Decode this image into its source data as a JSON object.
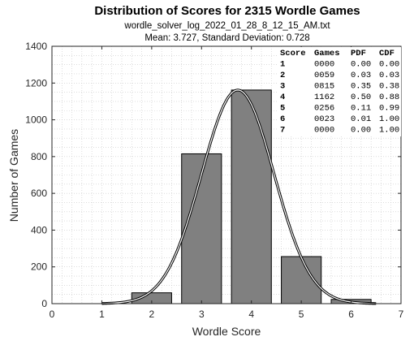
{
  "chart_data": {
    "type": "bar",
    "title": "Distribution of Scores for 2315 Wordle Games",
    "subtitle_file": "wordle_solver_log_2022_01_28_8_12_15_AM.txt",
    "subtitle_stats": "Mean: 3.727, Standard Deviation: 0.728",
    "xlabel": "Wordle Score",
    "ylabel": "Number of Games",
    "xlim": [
      0,
      7
    ],
    "ylim": [
      0,
      1400
    ],
    "xticks": [
      "0",
      "1",
      "2",
      "3",
      "4",
      "5",
      "6",
      "7"
    ],
    "yticks": [
      "0",
      "200",
      "400",
      "600",
      "800",
      "1000",
      "1200",
      "1400"
    ],
    "grid": "minor dotted",
    "bar_color": "#808080",
    "bars": [
      {
        "x": 1,
        "value": 0
      },
      {
        "x": 2,
        "value": 59
      },
      {
        "x": 3,
        "value": 815
      },
      {
        "x": 4,
        "value": 1162
      },
      {
        "x": 5,
        "value": 256
      },
      {
        "x": 6,
        "value": 23
      },
      {
        "x": 7,
        "value": 0
      }
    ],
    "curve": {
      "type": "normal",
      "mean": 3.727,
      "std": 0.728
    },
    "table": {
      "headers": [
        "Score",
        "Games",
        "PDF",
        "CDF"
      ],
      "rows": [
        [
          "1",
          "0000",
          "0.00",
          "0.00"
        ],
        [
          "2",
          "0059",
          "0.03",
          "0.03"
        ],
        [
          "3",
          "0815",
          "0.35",
          "0.38"
        ],
        [
          "4",
          "1162",
          "0.50",
          "0.88"
        ],
        [
          "5",
          "0256",
          "0.11",
          "0.99"
        ],
        [
          "6",
          "0023",
          "0.01",
          "1.00"
        ],
        [
          "7",
          "0000",
          "0.00",
          "1.00"
        ]
      ]
    }
  }
}
